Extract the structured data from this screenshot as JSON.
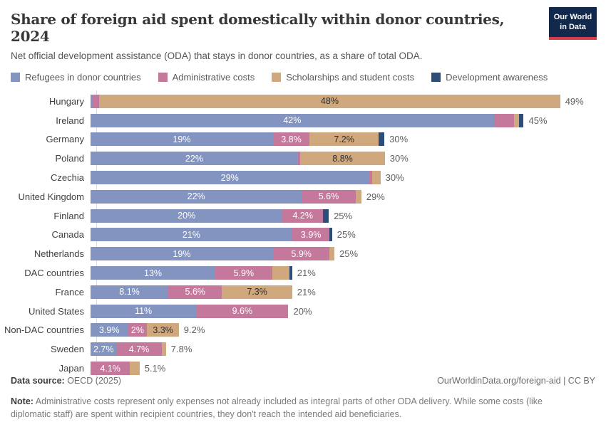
{
  "header": {
    "title": "Share of foreign aid spent domestically within donor countries, 2024",
    "subtitle": "Net official development assistance (ODA) that stays in donor countries, as a share of total ODA.",
    "logo": {
      "line1": "Our World",
      "line2": "in Data"
    }
  },
  "colors": {
    "refugees": "#8294bf",
    "admin": "#c4789b",
    "scholarships": "#cfa87d",
    "awareness": "#2e4c78",
    "logo_bg": "#12294d",
    "logo_stripe": "#d73c4c"
  },
  "legend": {
    "items": [
      {
        "key": "refugees",
        "label": "Refugees in donor countries",
        "color": "#8294bf"
      },
      {
        "key": "admin",
        "label": "Administrative costs",
        "color": "#c4789b"
      },
      {
        "key": "scholarships",
        "label": "Scholarships and student costs",
        "color": "#cfa87d"
      },
      {
        "key": "awareness",
        "label": "Development awareness",
        "color": "#2e4c78"
      }
    ]
  },
  "chart_data": {
    "type": "bar",
    "orientation": "horizontal-stacked",
    "unit": "%",
    "xlim": [
      0,
      49
    ],
    "grid": false,
    "legend_position": "top",
    "series_keys": [
      "refugees",
      "admin",
      "scholarships",
      "awareness"
    ],
    "series_names": [
      "Refugees in donor countries",
      "Administrative costs",
      "Scholarships and student costs",
      "Development awareness"
    ],
    "rows": [
      {
        "country": "Hungary",
        "values": [
          0.25,
          0.65,
          48,
          0
        ],
        "labels": [
          "",
          "",
          "48%",
          ""
        ],
        "total": "49%"
      },
      {
        "country": "Ireland",
        "values": [
          42,
          2.1,
          0.55,
          0.45
        ],
        "labels": [
          "42%",
          "",
          "",
          ""
        ],
        "total": "45%"
      },
      {
        "country": "Germany",
        "values": [
          19,
          3.8,
          7.2,
          0.6
        ],
        "labels": [
          "19%",
          "3.8%",
          "7.2%",
          ""
        ],
        "total": "30%"
      },
      {
        "country": "Poland",
        "values": [
          21.6,
          0.25,
          8.8,
          0
        ],
        "labels": [
          "22%",
          "",
          "8.8%",
          ""
        ],
        "total": "30%"
      },
      {
        "country": "Czechia",
        "values": [
          29,
          0.35,
          0.85,
          0
        ],
        "labels": [
          "29%",
          "",
          "",
          ""
        ],
        "total": "30%"
      },
      {
        "country": "United Kingdom",
        "values": [
          22,
          5.6,
          0.6,
          0
        ],
        "labels": [
          "22%",
          "5.6%",
          "",
          ""
        ],
        "total": "29%"
      },
      {
        "country": "Finland",
        "values": [
          20,
          4.2,
          0,
          0.6
        ],
        "labels": [
          "20%",
          "4.2%",
          "",
          ""
        ],
        "total": "25%"
      },
      {
        "country": "Canada",
        "values": [
          21,
          3.9,
          0,
          0.25
        ],
        "labels": [
          "21%",
          "3.9%",
          "",
          ""
        ],
        "total": "25%"
      },
      {
        "country": "Netherlands",
        "values": [
          19,
          5.9,
          0.5,
          0
        ],
        "labels": [
          "19%",
          "5.9%",
          "",
          ""
        ],
        "total": "25%"
      },
      {
        "country": "DAC countries",
        "values": [
          13,
          5.9,
          1.8,
          0.3
        ],
        "labels": [
          "13%",
          "5.9%",
          "",
          ""
        ],
        "total": "21%"
      },
      {
        "country": "France",
        "values": [
          8.1,
          5.6,
          7.3,
          0
        ],
        "labels": [
          "8.1%",
          "5.6%",
          "7.3%",
          ""
        ],
        "total": "21%"
      },
      {
        "country": "United States",
        "values": [
          11,
          9.6,
          0,
          0
        ],
        "labels": [
          "11%",
          "9.6%",
          "",
          ""
        ],
        "total": "20%"
      },
      {
        "country": "Non-DAC countries",
        "values": [
          3.9,
          2,
          3.3,
          0
        ],
        "labels": [
          "3.9%",
          "2%",
          "3.3%",
          ""
        ],
        "total": "9.2%"
      },
      {
        "country": "Sweden",
        "values": [
          2.7,
          4.7,
          0.45,
          0
        ],
        "labels": [
          "2.7%",
          "4.7%",
          "",
          ""
        ],
        "total": "7.8%"
      },
      {
        "country": "Japan",
        "values": [
          0,
          4.1,
          1.0,
          0
        ],
        "labels": [
          "",
          "4.1%",
          "",
          ""
        ],
        "total": "5.1%"
      }
    ]
  },
  "footer": {
    "source_label": "Data source:",
    "source_value": " OECD (2025)",
    "link": "OurWorldinData.org/foreign-aid | CC BY",
    "note_label": "Note:",
    "note_text": " Administrative costs represent only expenses not already included as integral parts of other ODA delivery. While some costs (like diplomatic staff) are spent within recipient countries, they don't reach the intended aid beneficiaries."
  }
}
